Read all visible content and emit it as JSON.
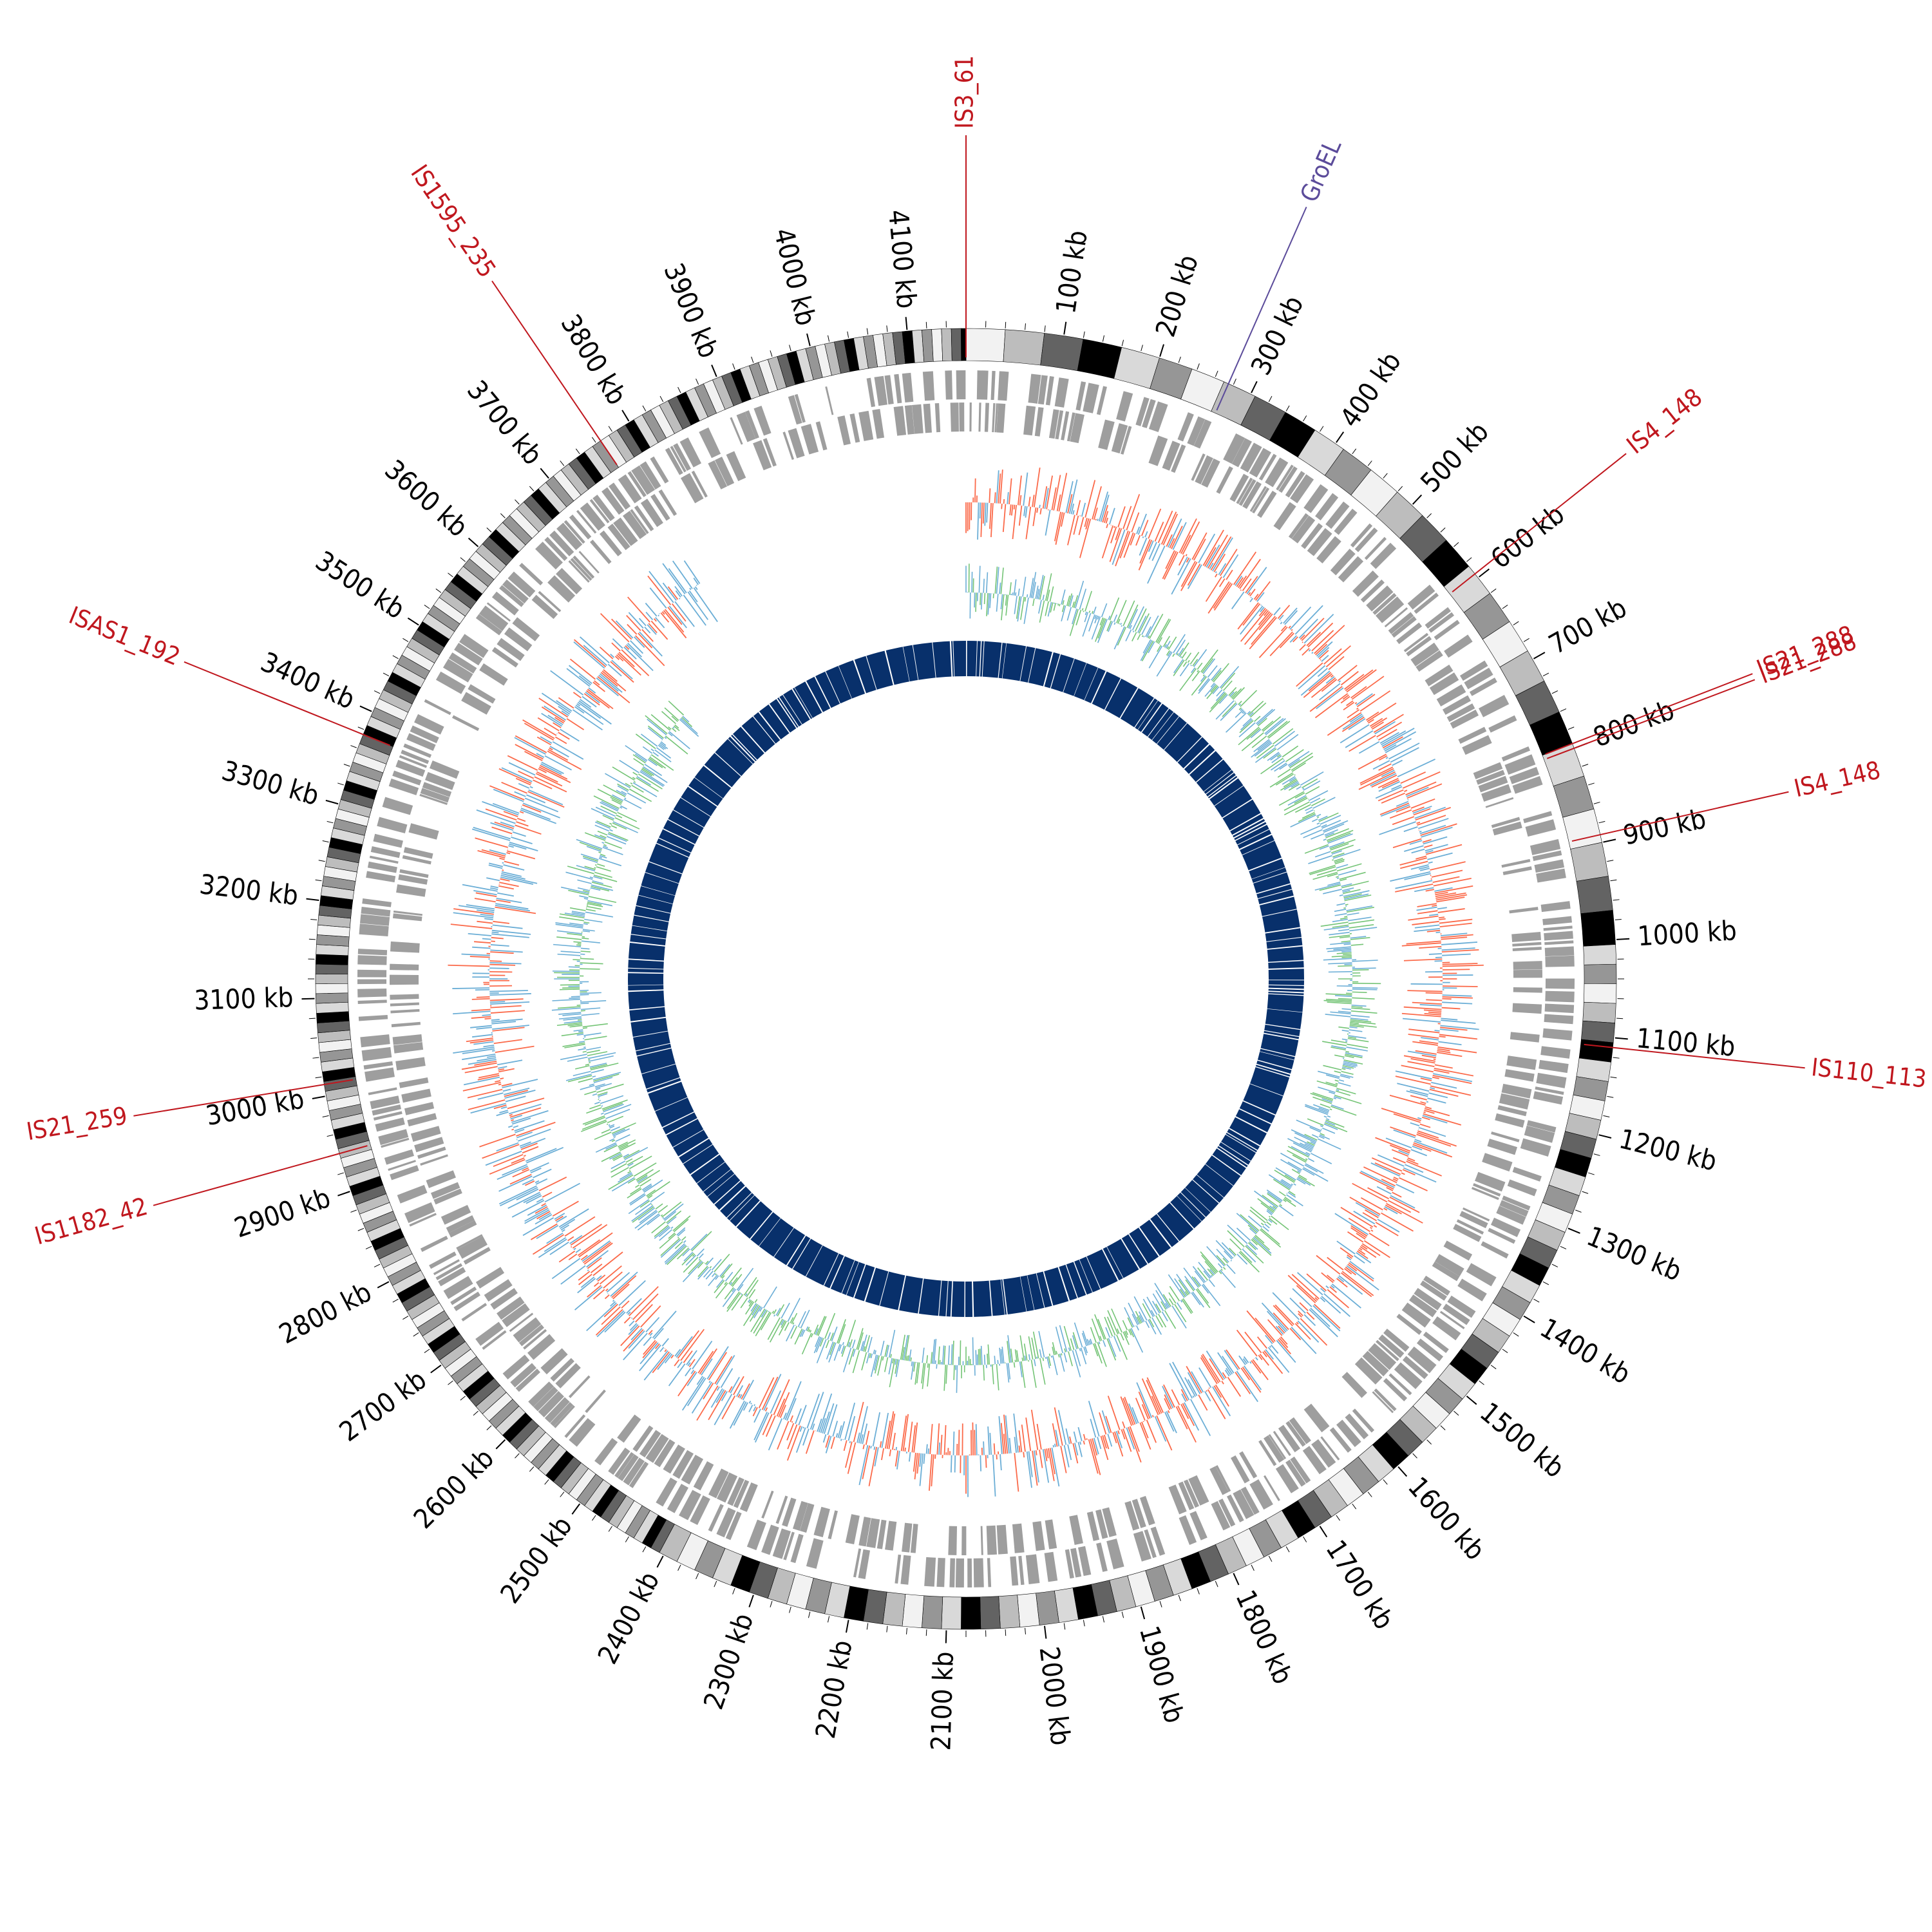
{
  "genome": {
    "length_kb": 4160,
    "major_tick_kb": 100,
    "minor_tick_kb": 20,
    "tick_unit": "kb"
  },
  "tick_labels": [
    "100 kb",
    "200 kb",
    "300 kb",
    "400 kb",
    "500 kb",
    "600 kb",
    "700 kb",
    "800 kb",
    "900 kb",
    "1000 kb",
    "1100 kb",
    "1200 kb",
    "1300 kb",
    "1400 kb",
    "1500 kb",
    "1600 kb",
    "1700 kb",
    "1800 kb",
    "1900 kb",
    "2000 kb",
    "2100 kb",
    "2200 kb",
    "2300 kb",
    "2400 kb",
    "2500 kb",
    "2600 kb",
    "2700 kb",
    "2800 kb",
    "2900 kb",
    "3000 kb",
    "3100 kb",
    "3200 kb",
    "3300 kb",
    "3400 kb",
    "3500 kb",
    "3600 kb",
    "3700 kb",
    "3800 kb",
    "3900 kb",
    "4000 kb",
    "4100 kb"
  ],
  "features": [
    {
      "label": "IS3_61",
      "position_kb": 0,
      "color": "#c0171e"
    },
    {
      "label": "GroEL",
      "position_kb": 275,
      "color": "#5b4b9a"
    },
    {
      "label": "IS4_148",
      "position_kb": 595,
      "color": "#c0171e"
    },
    {
      "label": "IS21_288",
      "position_kb": 795,
      "color": "#c0171e"
    },
    {
      "label": "IS21_288",
      "position_kb": 800,
      "color": "#c0171e"
    },
    {
      "label": "IS4_148",
      "position_kb": 892,
      "color": "#c0171e"
    },
    {
      "label": "IS110_113",
      "position_kb": 1110,
      "color": "#c0171e"
    },
    {
      "label": "IS1182_42",
      "position_kb": 2940,
      "color": "#c0171e"
    },
    {
      "label": "IS21_259",
      "position_kb": 3012,
      "color": "#c0171e"
    },
    {
      "label": "ISAS1_192",
      "position_kb": 3375,
      "color": "#c0171e"
    },
    {
      "label": "IS1595_235",
      "position_kb": 3765,
      "color": "#c0171e"
    }
  ],
  "tracks": {
    "ideogram_palette": [
      "#f2f2f2",
      "#bdbdbd",
      "#636363",
      "#000000",
      "#d9d9d9",
      "#969696"
    ],
    "genes_color": "#9e9e9e",
    "gc_skew_negative_color": "#fb6a4a",
    "gc_skew_positive_color": "#6baed6",
    "gc_content_color": "#74c476",
    "gc_content_alt_color": "#6baed6",
    "inner_ring_color": "#08306b",
    "gap_start_kb": 3770,
    "gap_end_kb": 4160
  }
}
